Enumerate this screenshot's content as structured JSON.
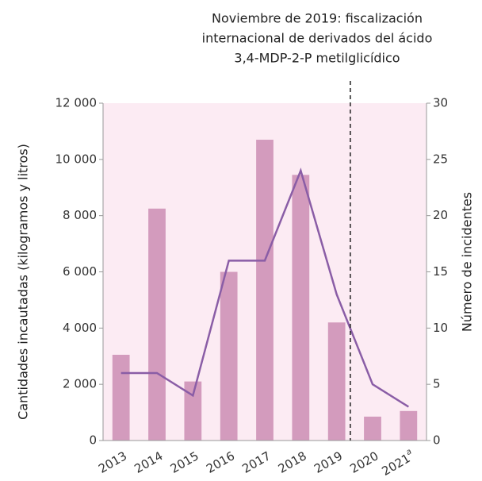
{
  "chart_data": {
    "type": "bar_line",
    "annotation": {
      "lines": [
        "Noviembre de 2019: fiscalización",
        "internacional de derivados del ácido",
        "3,4-MDP-2-P metilglicídico"
      ]
    },
    "y_label": "Cantidades incautadas (kilogramos y litros)",
    "y2_label": "Número de incidentes",
    "categories": [
      "2013",
      "2014",
      "2015",
      "2016",
      "2017",
      "2018",
      "2019",
      "2020",
      "2021"
    ],
    "category_notes": [
      null,
      null,
      null,
      null,
      null,
      null,
      null,
      null,
      "a"
    ],
    "series": [
      {
        "color": "#d39bbd",
        "values": [
          3050,
          8250,
          2100,
          6000,
          10700,
          9450,
          4200,
          850,
          1050
        ]
      },
      {
        "color": "#8a5da6",
        "axis": "y2",
        "values": [
          6,
          6,
          4,
          16,
          16,
          24,
          13,
          5,
          3
        ]
      }
    ],
    "ylim": [
      0,
      12000
    ],
    "yticks": [
      0,
      {
        "value": 2000,
        "label": "2 000"
      },
      {
        "value": 4000,
        "label": "4 000"
      },
      {
        "value": 6000,
        "label": "6 000"
      },
      {
        "value": 8000,
        "label": "8 000"
      },
      {
        "value": 10000,
        "label": "10 000"
      },
      {
        "value": 12000,
        "label": "12 000"
      }
    ],
    "y2lim": [
      0,
      30
    ],
    "y2ticks": [
      0,
      5,
      10,
      15,
      20,
      25,
      30
    ],
    "background": "#fcebf3"
  }
}
